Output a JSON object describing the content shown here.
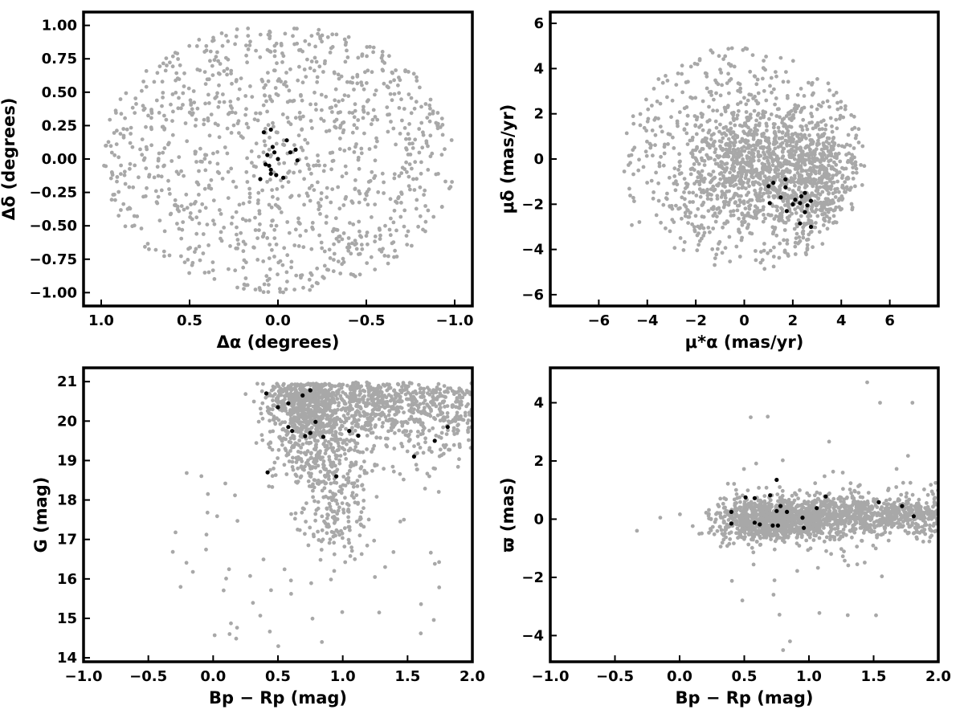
{
  "chart_data": [
    {
      "id": "sky",
      "type": "scatter",
      "xlabel": "Δα (degrees)",
      "ylabel": "Δδ (degrees)",
      "xlim": [
        1.1,
        -1.1
      ],
      "ylim": [
        -1.1,
        1.1
      ],
      "xticks": [
        1.0,
        0.5,
        0.0,
        -0.5,
        -1.0
      ],
      "xtick_labels": [
        "1.0",
        "0.5",
        "0.0",
        "−0.5",
        "−1.0"
      ],
      "yticks": [
        -1.0,
        -0.75,
        -0.5,
        -0.25,
        0.0,
        0.25,
        0.5,
        0.75,
        1.0
      ],
      "ytick_labels": [
        "−1.00",
        "−0.75",
        "−0.50",
        "−0.25",
        "0.00",
        "0.25",
        "0.50",
        "0.75",
        "1.00"
      ],
      "field_color": "#a8a8a8",
      "member_color": "#000000",
      "field_distribution": {
        "kind": "disk",
        "center": [
          0,
          0
        ],
        "radius": 1.0,
        "count": 1100
      },
      "members": [
        {
          "x": 0.04,
          "y": 0.22
        },
        {
          "x": -0.05,
          "y": 0.14
        },
        {
          "x": 0.03,
          "y": 0.09
        },
        {
          "x": 0.08,
          "y": 0.2
        },
        {
          "x": 0.02,
          "y": 0.05
        },
        {
          "x": -0.07,
          "y": 0.05
        },
        {
          "x": -0.1,
          "y": 0.07
        },
        {
          "x": -0.11,
          "y": -0.01
        },
        {
          "x": 0.06,
          "y": 0.03
        },
        {
          "x": 0.0,
          "y": 0.0
        },
        {
          "x": 0.07,
          "y": -0.04
        },
        {
          "x": 0.04,
          "y": -0.08
        },
        {
          "x": 0.04,
          "y": -0.11
        },
        {
          "x": 0.05,
          "y": -0.05
        },
        {
          "x": 0.1,
          "y": -0.15
        },
        {
          "x": 0.01,
          "y": -0.12
        },
        {
          "x": -0.03,
          "y": -0.14
        }
      ]
    },
    {
      "id": "pm",
      "type": "scatter",
      "xlabel": "μ*α  (mas/yr)",
      "ylabel": "μδ (mas/yr)",
      "xlim": [
        -8,
        8
      ],
      "ylim": [
        -6.5,
        6.5
      ],
      "xticks": [
        -6,
        -4,
        -2,
        0,
        2,
        4,
        6
      ],
      "xtick_labels": [
        "−6",
        "−4",
        "−2",
        "0",
        "2",
        "4",
        "6"
      ],
      "yticks": [
        -6,
        -4,
        -2,
        0,
        2,
        4,
        6
      ],
      "ytick_labels": [
        "−6",
        "−4",
        "−2",
        "0",
        "2",
        "4",
        "6"
      ],
      "field_color": "#a8a8a8",
      "member_color": "#000000",
      "field_distribution": {
        "kind": "disk-mixture",
        "center": [
          0,
          0
        ],
        "radius": 5.0,
        "count": 1500,
        "concentrations": [
          {
            "center": [
              0,
              -0.3
            ],
            "count": 600
          },
          {
            "center": [
              2.5,
              -0.8
            ],
            "count": 700
          }
        ]
      },
      "members": [
        {
          "x": 1.0,
          "y": -1.2
        },
        {
          "x": 1.2,
          "y": -1.05
        },
        {
          "x": 1.7,
          "y": -0.9
        },
        {
          "x": 1.7,
          "y": -1.25
        },
        {
          "x": 1.5,
          "y": -1.7
        },
        {
          "x": 1.05,
          "y": -1.95
        },
        {
          "x": 1.75,
          "y": -2.3
        },
        {
          "x": 2.1,
          "y": -1.8
        },
        {
          "x": 2.0,
          "y": -2.0
        },
        {
          "x": 2.3,
          "y": -1.95
        },
        {
          "x": 2.35,
          "y": -1.65
        },
        {
          "x": 2.5,
          "y": -1.5
        },
        {
          "x": 2.75,
          "y": -1.85
        },
        {
          "x": 2.6,
          "y": -2.05
        },
        {
          "x": 2.5,
          "y": -2.35
        },
        {
          "x": 2.3,
          "y": -2.85
        },
        {
          "x": 2.75,
          "y": -3.0
        }
      ]
    },
    {
      "id": "cmd",
      "type": "scatter",
      "xlabel": "Bp − Rp (mag)",
      "ylabel": "G (mag)",
      "xlim": [
        -1.0,
        2.0
      ],
      "ylim": [
        13.9,
        21.35
      ],
      "xticks": [
        -1.0,
        -0.5,
        0.0,
        0.5,
        1.0,
        1.5,
        2.0
      ],
      "xtick_labels": [
        "−1.0",
        "−0.5",
        "0.0",
        "0.5",
        "1.0",
        "1.5",
        "2.0"
      ],
      "yticks": [
        14,
        15,
        16,
        17,
        18,
        19,
        20,
        21
      ],
      "ytick_labels": [
        "14",
        "15",
        "16",
        "17",
        "18",
        "19",
        "20",
        "21"
      ],
      "field_color": "#a8a8a8",
      "member_color": "#000000",
      "field_distribution": {
        "kind": "cmd-cloud",
        "count": 1800
      },
      "members": [
        {
          "x": 0.41,
          "y": 20.7
        },
        {
          "x": 0.5,
          "y": 20.35
        },
        {
          "x": 0.58,
          "y": 20.45
        },
        {
          "x": 0.69,
          "y": 20.65
        },
        {
          "x": 0.75,
          "y": 20.78
        },
        {
          "x": 0.79,
          "y": 19.98
        },
        {
          "x": 0.58,
          "y": 19.85
        },
        {
          "x": 0.61,
          "y": 19.75
        },
        {
          "x": 0.75,
          "y": 19.7
        },
        {
          "x": 0.71,
          "y": 19.62
        },
        {
          "x": 0.85,
          "y": 19.6
        },
        {
          "x": 1.05,
          "y": 19.75
        },
        {
          "x": 1.12,
          "y": 19.63
        },
        {
          "x": 0.95,
          "y": 18.6
        },
        {
          "x": 0.42,
          "y": 18.7
        },
        {
          "x": 1.55,
          "y": 19.1
        },
        {
          "x": 1.71,
          "y": 19.5
        },
        {
          "x": 1.81,
          "y": 19.85
        }
      ]
    },
    {
      "id": "parallax",
      "type": "scatter",
      "xlabel": "Bp − Rp (mag)",
      "ylabel": "ϖ (mas)",
      "xlim": [
        -1.0,
        2.0
      ],
      "ylim": [
        -4.9,
        5.2
      ],
      "xticks": [
        -1.0,
        -0.5,
        0.0,
        0.5,
        1.0,
        1.5,
        2.0
      ],
      "xtick_labels": [
        "−1.0",
        "−0.5",
        "0.0",
        "0.5",
        "1.0",
        "1.5",
        "2.0"
      ],
      "yticks": [
        -4,
        -2,
        0,
        2,
        4
      ],
      "ytick_labels": [
        "−4",
        "−2",
        "0",
        "2",
        "4"
      ],
      "field_color": "#a8a8a8",
      "member_color": "#000000",
      "field_distribution": {
        "kind": "band",
        "center_y": 0.0,
        "count": 1800
      },
      "members": [
        {
          "x": 0.4,
          "y": 0.25
        },
        {
          "x": 0.4,
          "y": -0.15
        },
        {
          "x": 0.51,
          "y": 0.75
        },
        {
          "x": 0.58,
          "y": 0.72
        },
        {
          "x": 0.58,
          "y": -0.12
        },
        {
          "x": 0.62,
          "y": -0.18
        },
        {
          "x": 0.7,
          "y": 0.82
        },
        {
          "x": 0.75,
          "y": 1.35
        },
        {
          "x": 0.78,
          "y": 0.45
        },
        {
          "x": 0.75,
          "y": 0.28
        },
        {
          "x": 0.83,
          "y": 0.25
        },
        {
          "x": 0.72,
          "y": -0.22
        },
        {
          "x": 0.76,
          "y": -0.22
        },
        {
          "x": 0.95,
          "y": 0.05
        },
        {
          "x": 0.96,
          "y": -0.3
        },
        {
          "x": 1.06,
          "y": 0.38
        },
        {
          "x": 1.13,
          "y": 0.78
        },
        {
          "x": 1.54,
          "y": 0.58
        },
        {
          "x": 1.72,
          "y": 0.45
        },
        {
          "x": 1.81,
          "y": 0.1
        }
      ]
    }
  ]
}
